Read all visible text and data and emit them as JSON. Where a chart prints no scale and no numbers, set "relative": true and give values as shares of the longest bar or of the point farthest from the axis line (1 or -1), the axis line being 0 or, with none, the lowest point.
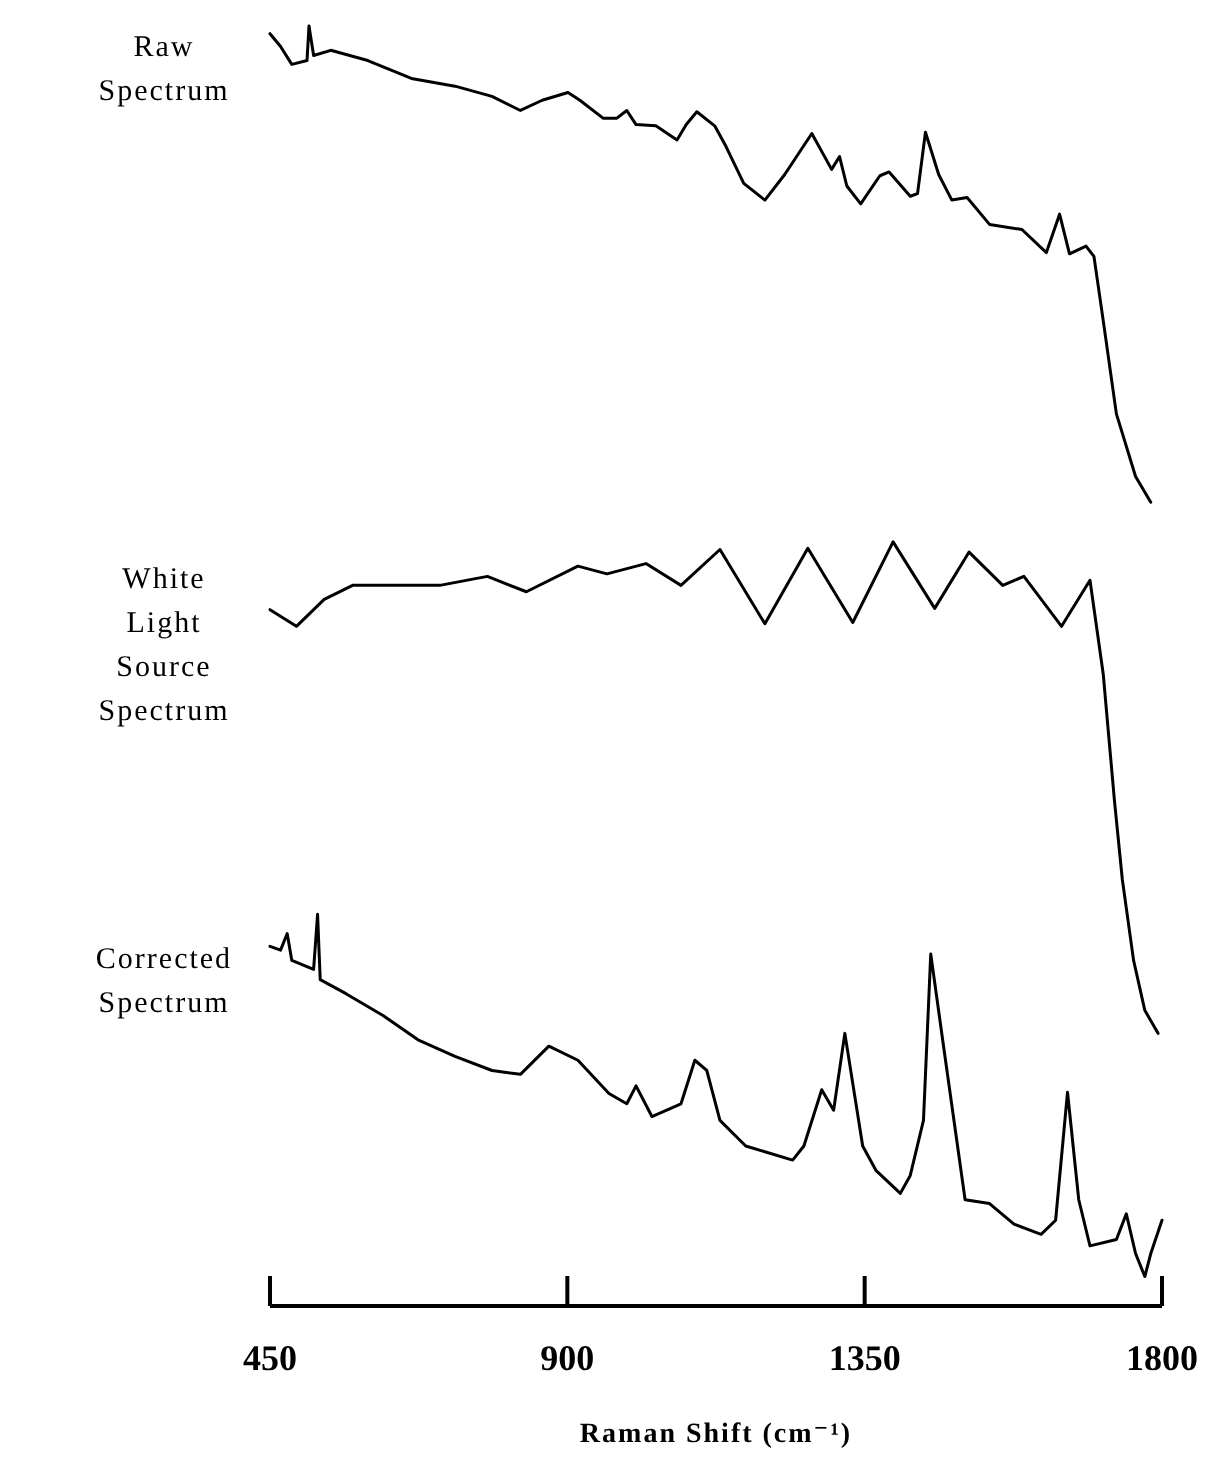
{
  "chart_data": {
    "type": "line",
    "relative": true,
    "xlabel": "Raman Shift (cm⁻¹)",
    "xlim": [
      450,
      1800
    ],
    "xticks": [
      450,
      900,
      1350,
      1800
    ],
    "series": [
      {
        "name": "Raw Spectrum",
        "color": "#000000",
        "x": [
          450,
          466,
          483,
          506,
          509,
          516,
          542,
          598,
          664,
          730,
          786,
          829,
          862,
          901,
          919,
          954,
          975,
          990,
          1004,
          1034,
          1066,
          1080,
          1096,
          1123,
          1140,
          1167,
          1199,
          1229,
          1270,
          1300,
          1312,
          1323,
          1344,
          1373,
          1387,
          1419,
          1430,
          1442,
          1462,
          1482,
          1505,
          1539,
          1588,
          1625,
          1645,
          1660,
          1685,
          1697,
          1711,
          1731,
          1760,
          1783
        ],
        "values": [
          0.994,
          0.984,
          0.97,
          0.973,
          1.0,
          0.977,
          0.981,
          0.973,
          0.959,
          0.953,
          0.945,
          0.934,
          0.942,
          0.948,
          0.942,
          0.928,
          0.928,
          0.934,
          0.923,
          0.922,
          0.911,
          0.923,
          0.933,
          0.922,
          0.906,
          0.877,
          0.864,
          0.884,
          0.916,
          0.888,
          0.898,
          0.875,
          0.861,
          0.883,
          0.886,
          0.867,
          0.869,
          0.917,
          0.884,
          0.864,
          0.866,
          0.845,
          0.841,
          0.823,
          0.853,
          0.822,
          0.828,
          0.82,
          0.77,
          0.697,
          0.648,
          0.628
        ]
      },
      {
        "name": "White Light Source Spectrum",
        "color": "#000000",
        "x": [
          450,
          490,
          532,
          575,
          707,
          779,
          838,
          916,
          960,
          1019,
          1072,
          1131,
          1199,
          1264,
          1332,
          1393,
          1456,
          1508,
          1559,
          1591,
          1648,
          1691,
          1711,
          1728,
          1740,
          1757,
          1774,
          1794
        ],
        "values": [
          0.544,
          0.531,
          0.552,
          0.563,
          0.563,
          0.57,
          0.558,
          0.578,
          0.572,
          0.58,
          0.563,
          0.591,
          0.533,
          0.592,
          0.534,
          0.597,
          0.545,
          0.589,
          0.563,
          0.57,
          0.531,
          0.567,
          0.494,
          0.395,
          0.333,
          0.27,
          0.231,
          0.213
        ]
      },
      {
        "name": "Corrected Spectrum",
        "color": "#000000",
        "x": [
          450,
          466,
          476,
          483,
          516,
          522,
          526,
          565,
          621,
          674,
          730,
          786,
          829,
          872,
          916,
          963,
          990,
          1004,
          1028,
          1072,
          1093,
          1111,
          1131,
          1170,
          1241,
          1258,
          1285,
          1303,
          1320,
          1347,
          1367,
          1404,
          1419,
          1439,
          1450,
          1468,
          1502,
          1539,
          1576,
          1617,
          1639,
          1657,
          1674,
          1691,
          1731,
          1746,
          1760,
          1774,
          1783,
          1800
        ],
        "values": [
          0.281,
          0.278,
          0.291,
          0.27,
          0.263,
          0.306,
          0.255,
          0.244,
          0.227,
          0.208,
          0.195,
          0.184,
          0.181,
          0.203,
          0.192,
          0.166,
          0.158,
          0.172,
          0.148,
          0.158,
          0.192,
          0.184,
          0.145,
          0.125,
          0.114,
          0.125,
          0.169,
          0.153,
          0.213,
          0.125,
          0.106,
          0.088,
          0.102,
          0.145,
          0.275,
          0.208,
          0.083,
          0.08,
          0.064,
          0.056,
          0.067,
          0.167,
          0.083,
          0.047,
          0.052,
          0.072,
          0.041,
          0.023,
          0.041,
          0.067
        ]
      }
    ]
  }
}
